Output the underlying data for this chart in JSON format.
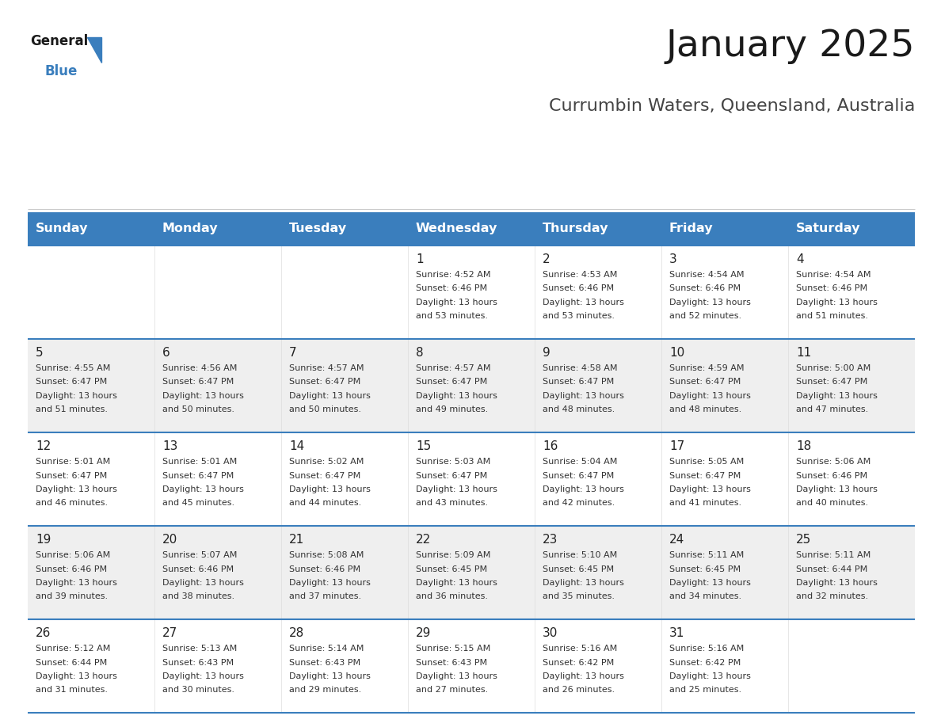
{
  "title": "January 2025",
  "subtitle": "Currumbin Waters, Queensland, Australia",
  "header_color": "#3A7EBD",
  "header_text_color": "#FFFFFF",
  "header_font_size": 11.5,
  "day_number_font_size": 11,
  "cell_text_font_size": 8,
  "title_font_size": 34,
  "subtitle_font_size": 16,
  "weekdays": [
    "Sunday",
    "Monday",
    "Tuesday",
    "Wednesday",
    "Thursday",
    "Friday",
    "Saturday"
  ],
  "background_color": "#FFFFFF",
  "cell_bg_even": "#EFEFEF",
  "cell_bg_odd": "#FFFFFF",
  "divider_color": "#3A7EBD",
  "days": [
    {
      "day": 1,
      "col": 3,
      "row": 0,
      "sunrise": "4:52 AM",
      "sunset": "6:46 PM",
      "daylight_hours": 13,
      "daylight_minutes": 53
    },
    {
      "day": 2,
      "col": 4,
      "row": 0,
      "sunrise": "4:53 AM",
      "sunset": "6:46 PM",
      "daylight_hours": 13,
      "daylight_minutes": 53
    },
    {
      "day": 3,
      "col": 5,
      "row": 0,
      "sunrise": "4:54 AM",
      "sunset": "6:46 PM",
      "daylight_hours": 13,
      "daylight_minutes": 52
    },
    {
      "day": 4,
      "col": 6,
      "row": 0,
      "sunrise": "4:54 AM",
      "sunset": "6:46 PM",
      "daylight_hours": 13,
      "daylight_minutes": 51
    },
    {
      "day": 5,
      "col": 0,
      "row": 1,
      "sunrise": "4:55 AM",
      "sunset": "6:47 PM",
      "daylight_hours": 13,
      "daylight_minutes": 51
    },
    {
      "day": 6,
      "col": 1,
      "row": 1,
      "sunrise": "4:56 AM",
      "sunset": "6:47 PM",
      "daylight_hours": 13,
      "daylight_minutes": 50
    },
    {
      "day": 7,
      "col": 2,
      "row": 1,
      "sunrise": "4:57 AM",
      "sunset": "6:47 PM",
      "daylight_hours": 13,
      "daylight_minutes": 50
    },
    {
      "day": 8,
      "col": 3,
      "row": 1,
      "sunrise": "4:57 AM",
      "sunset": "6:47 PM",
      "daylight_hours": 13,
      "daylight_minutes": 49
    },
    {
      "day": 9,
      "col": 4,
      "row": 1,
      "sunrise": "4:58 AM",
      "sunset": "6:47 PM",
      "daylight_hours": 13,
      "daylight_minutes": 48
    },
    {
      "day": 10,
      "col": 5,
      "row": 1,
      "sunrise": "4:59 AM",
      "sunset": "6:47 PM",
      "daylight_hours": 13,
      "daylight_minutes": 48
    },
    {
      "day": 11,
      "col": 6,
      "row": 1,
      "sunrise": "5:00 AM",
      "sunset": "6:47 PM",
      "daylight_hours": 13,
      "daylight_minutes": 47
    },
    {
      "day": 12,
      "col": 0,
      "row": 2,
      "sunrise": "5:01 AM",
      "sunset": "6:47 PM",
      "daylight_hours": 13,
      "daylight_minutes": 46
    },
    {
      "day": 13,
      "col": 1,
      "row": 2,
      "sunrise": "5:01 AM",
      "sunset": "6:47 PM",
      "daylight_hours": 13,
      "daylight_minutes": 45
    },
    {
      "day": 14,
      "col": 2,
      "row": 2,
      "sunrise": "5:02 AM",
      "sunset": "6:47 PM",
      "daylight_hours": 13,
      "daylight_minutes": 44
    },
    {
      "day": 15,
      "col": 3,
      "row": 2,
      "sunrise": "5:03 AM",
      "sunset": "6:47 PM",
      "daylight_hours": 13,
      "daylight_minutes": 43
    },
    {
      "day": 16,
      "col": 4,
      "row": 2,
      "sunrise": "5:04 AM",
      "sunset": "6:47 PM",
      "daylight_hours": 13,
      "daylight_minutes": 42
    },
    {
      "day": 17,
      "col": 5,
      "row": 2,
      "sunrise": "5:05 AM",
      "sunset": "6:47 PM",
      "daylight_hours": 13,
      "daylight_minutes": 41
    },
    {
      "day": 18,
      "col": 6,
      "row": 2,
      "sunrise": "5:06 AM",
      "sunset": "6:46 PM",
      "daylight_hours": 13,
      "daylight_minutes": 40
    },
    {
      "day": 19,
      "col": 0,
      "row": 3,
      "sunrise": "5:06 AM",
      "sunset": "6:46 PM",
      "daylight_hours": 13,
      "daylight_minutes": 39
    },
    {
      "day": 20,
      "col": 1,
      "row": 3,
      "sunrise": "5:07 AM",
      "sunset": "6:46 PM",
      "daylight_hours": 13,
      "daylight_minutes": 38
    },
    {
      "day": 21,
      "col": 2,
      "row": 3,
      "sunrise": "5:08 AM",
      "sunset": "6:46 PM",
      "daylight_hours": 13,
      "daylight_minutes": 37
    },
    {
      "day": 22,
      "col": 3,
      "row": 3,
      "sunrise": "5:09 AM",
      "sunset": "6:45 PM",
      "daylight_hours": 13,
      "daylight_minutes": 36
    },
    {
      "day": 23,
      "col": 4,
      "row": 3,
      "sunrise": "5:10 AM",
      "sunset": "6:45 PM",
      "daylight_hours": 13,
      "daylight_minutes": 35
    },
    {
      "day": 24,
      "col": 5,
      "row": 3,
      "sunrise": "5:11 AM",
      "sunset": "6:45 PM",
      "daylight_hours": 13,
      "daylight_minutes": 34
    },
    {
      "day": 25,
      "col": 6,
      "row": 3,
      "sunrise": "5:11 AM",
      "sunset": "6:44 PM",
      "daylight_hours": 13,
      "daylight_minutes": 32
    },
    {
      "day": 26,
      "col": 0,
      "row": 4,
      "sunrise": "5:12 AM",
      "sunset": "6:44 PM",
      "daylight_hours": 13,
      "daylight_minutes": 31
    },
    {
      "day": 27,
      "col": 1,
      "row": 4,
      "sunrise": "5:13 AM",
      "sunset": "6:43 PM",
      "daylight_hours": 13,
      "daylight_minutes": 30
    },
    {
      "day": 28,
      "col": 2,
      "row": 4,
      "sunrise": "5:14 AM",
      "sunset": "6:43 PM",
      "daylight_hours": 13,
      "daylight_minutes": 29
    },
    {
      "day": 29,
      "col": 3,
      "row": 4,
      "sunrise": "5:15 AM",
      "sunset": "6:43 PM",
      "daylight_hours": 13,
      "daylight_minutes": 27
    },
    {
      "day": 30,
      "col": 4,
      "row": 4,
      "sunrise": "5:16 AM",
      "sunset": "6:42 PM",
      "daylight_hours": 13,
      "daylight_minutes": 26
    },
    {
      "day": 31,
      "col": 5,
      "row": 4,
      "sunrise": "5:16 AM",
      "sunset": "6:42 PM",
      "daylight_hours": 13,
      "daylight_minutes": 25
    }
  ]
}
